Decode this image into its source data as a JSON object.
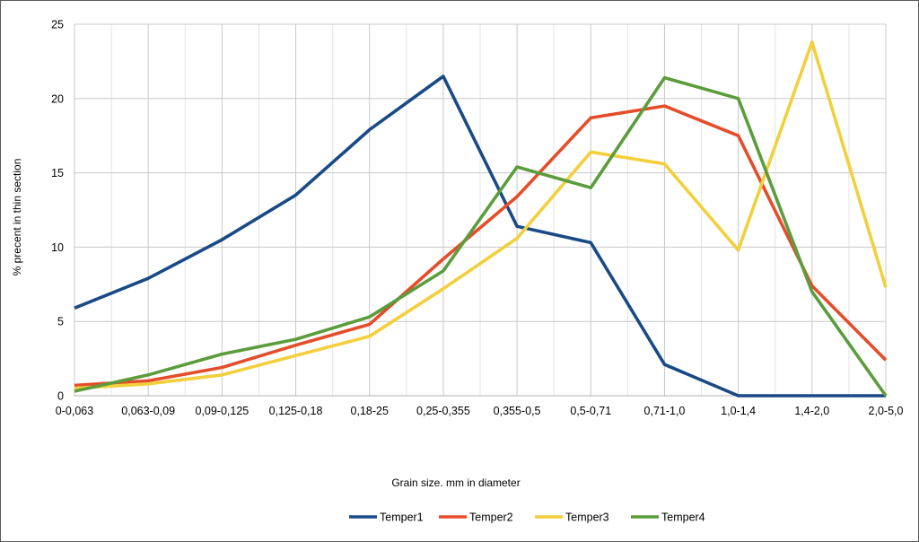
{
  "chart_data": {
    "type": "line",
    "title": "",
    "xlabel": "Grain size. mm in diameter",
    "ylabel": "% precent in thin section",
    "ylim": [
      0,
      25
    ],
    "yticks": [
      0,
      5,
      10,
      15,
      20,
      25
    ],
    "grid": true,
    "legend_position": "bottom",
    "categories": [
      "0-0,063",
      "0,063-0,09",
      "0,09-0,125",
      "0,125-0,18",
      "0,18-25",
      "0,25-0,355",
      "0,355-0,5",
      "0,5-0,71",
      "0,71-1,0",
      "1,0-1,4",
      "1,4-2,0",
      "2,0-5,0"
    ],
    "series": [
      {
        "name": "Temper1",
        "color": "#1a4a85",
        "values": [
          5.9,
          7.9,
          10.5,
          13.5,
          17.9,
          21.5,
          11.4,
          10.3,
          2.1,
          0.0,
          0.0,
          0.0
        ]
      },
      {
        "name": "Temper2",
        "color": "#e54d2a",
        "values": [
          0.7,
          1.0,
          1.9,
          3.4,
          4.8,
          9.2,
          13.4,
          18.7,
          19.5,
          17.5,
          7.4,
          2.4
        ]
      },
      {
        "name": "Temper3",
        "color": "#f2cf3c",
        "values": [
          0.5,
          0.8,
          1.4,
          2.7,
          4.0,
          7.2,
          10.6,
          16.4,
          15.6,
          9.8,
          23.8,
          7.3
        ]
      },
      {
        "name": "Temper4",
        "color": "#5b9c3c",
        "values": [
          0.3,
          1.4,
          2.8,
          3.8,
          5.3,
          8.4,
          15.4,
          14.0,
          21.4,
          20.0,
          7.0,
          0.0
        ]
      }
    ]
  }
}
